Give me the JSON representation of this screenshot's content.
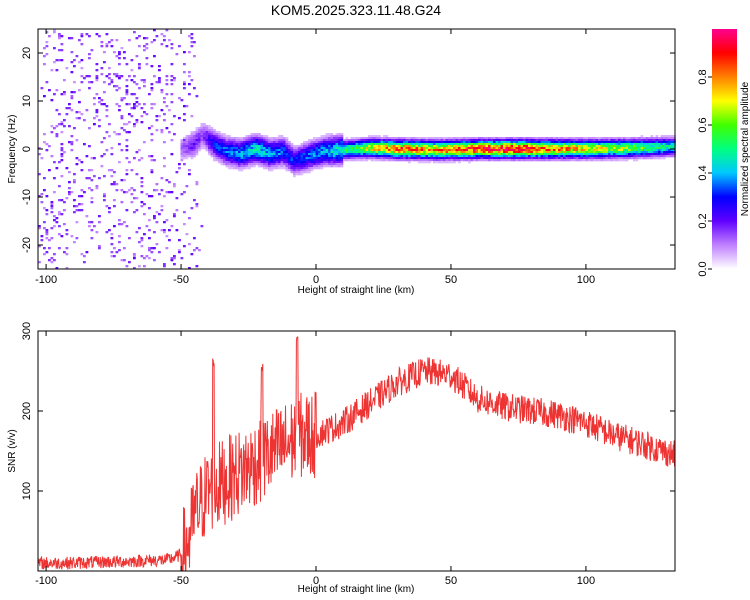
{
  "title": "KOM5.2025.323.11.48.G24",
  "chart_data": [
    {
      "type": "heatmap",
      "xlabel": "Height of straight line (km)",
      "ylabel": "Frequency (Hz)",
      "xlim": [
        -103,
        133
      ],
      "ylim": [
        -25,
        25
      ],
      "xticks": [
        -100,
        -50,
        0,
        50,
        100
      ],
      "yticks": [
        -20,
        -10,
        0,
        10,
        20
      ],
      "colorbar": {
        "label": "Normalized spectral amplitude",
        "range": [
          0,
          1
        ],
        "ticks": [
          "0.0",
          "0.2",
          "0.4",
          "0.6",
          "0.8"
        ],
        "colors": [
          "#ffffff",
          "#c080ff",
          "#6000ff",
          "#0000ff",
          "#00c8ff",
          "#00ff80",
          "#40ff00",
          "#ffff00",
          "#ff8000",
          "#ff0000",
          "#ff0090"
        ]
      },
      "ridge": [
        {
          "x": -50,
          "y": 0.0,
          "amp": 0.12
        },
        {
          "x": -45,
          "y": 1.0,
          "amp": 0.2
        },
        {
          "x": -42,
          "y": 3.0,
          "amp": 0.15
        },
        {
          "x": -38,
          "y": 1.0,
          "amp": 0.3
        },
        {
          "x": -33,
          "y": -0.5,
          "amp": 0.35
        },
        {
          "x": -28,
          "y": -1.0,
          "amp": 0.4
        },
        {
          "x": -22,
          "y": 0.0,
          "amp": 0.45
        },
        {
          "x": -17,
          "y": -1.0,
          "amp": 0.4
        },
        {
          "x": -12,
          "y": -0.5,
          "amp": 0.35
        },
        {
          "x": -8,
          "y": -2.5,
          "amp": 0.3
        },
        {
          "x": -3,
          "y": -1.5,
          "amp": 0.35
        },
        {
          "x": 3,
          "y": -0.5,
          "amp": 0.4
        },
        {
          "x": 10,
          "y": -0.2,
          "amp": 0.5
        },
        {
          "x": 20,
          "y": 0.2,
          "amp": 0.7
        },
        {
          "x": 30,
          "y": 0.0,
          "amp": 0.85
        },
        {
          "x": 45,
          "y": -0.2,
          "amp": 0.8
        },
        {
          "x": 60,
          "y": 0.0,
          "amp": 0.9
        },
        {
          "x": 75,
          "y": 0.0,
          "amp": 0.95
        },
        {
          "x": 90,
          "y": 0.0,
          "amp": 0.8
        },
        {
          "x": 105,
          "y": 0.0,
          "amp": 0.7
        },
        {
          "x": 120,
          "y": 0.2,
          "amp": 0.6
        },
        {
          "x": 133,
          "y": 0.5,
          "amp": 0.45
        }
      ],
      "noise_region_x": [
        -103,
        -50
      ],
      "noise_amplitude": 0.08
    },
    {
      "type": "line",
      "xlabel": "Height of straight line (km)",
      "ylabel": "SNR (v/v)",
      "xlim": [
        -103,
        133
      ],
      "ylim": [
        0,
        300
      ],
      "xticks": [
        -100,
        -50,
        0,
        50,
        100
      ],
      "yticks": [
        100,
        200,
        300
      ],
      "color": "#ee3333",
      "trend": {
        "x": [
          -103,
          -90,
          -70,
          -55,
          -50,
          -47,
          -45,
          -40,
          -35,
          -30,
          -25,
          -20,
          -15,
          -10,
          -5,
          0,
          10,
          20,
          30,
          40,
          50,
          60,
          70,
          80,
          90,
          100,
          110,
          120,
          133
        ],
        "y": [
          10,
          10,
          12,
          14,
          20,
          40,
          70,
          100,
          110,
          120,
          130,
          140,
          150,
          160,
          170,
          170,
          185,
          210,
          235,
          250,
          245,
          215,
          205,
          200,
          195,
          185,
          170,
          160,
          145
        ]
      },
      "peaks": [
        {
          "x": -38,
          "y": 265
        },
        {
          "x": -20,
          "y": 260
        },
        {
          "x": -7,
          "y": 298
        }
      ]
    }
  ]
}
